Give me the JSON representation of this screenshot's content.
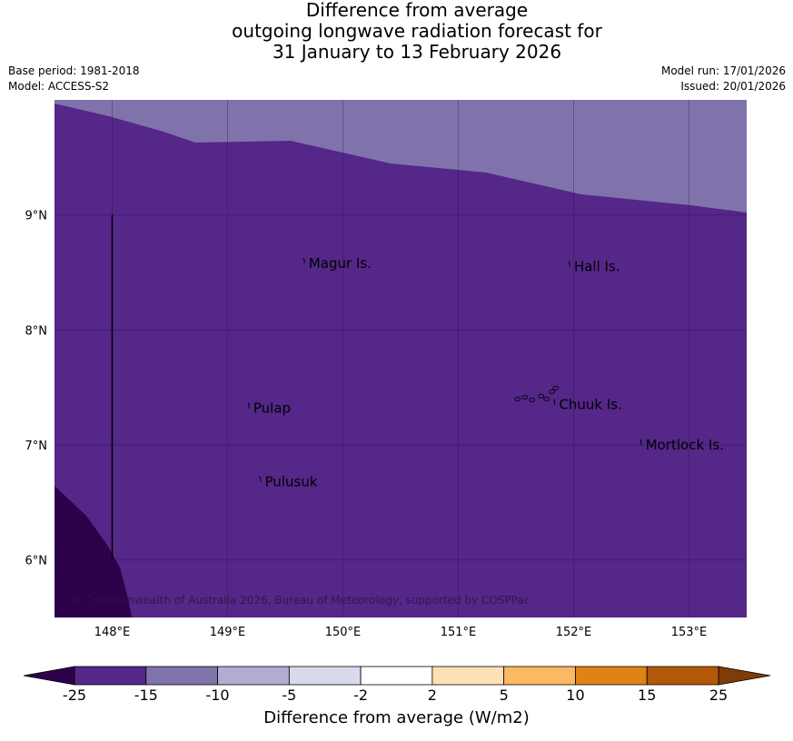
{
  "title": {
    "line1": "Difference from average",
    "line2": "outgoing longwave radiation forecast for",
    "line3": "31 January to 13 February 2026"
  },
  "meta": {
    "base_period": "Base period: 1981-2018",
    "model": "Model: ACCESS-S2",
    "model_run": "Model run: 17/01/2026",
    "issued": "Issued: 20/01/2026"
  },
  "map": {
    "lon_range": [
      147.5,
      153.5
    ],
    "lat_range": [
      5.5,
      10.0
    ],
    "lon_ticks": [
      {
        "value": 148,
        "label": "148°E"
      },
      {
        "value": 149,
        "label": "149°E"
      },
      {
        "value": 150,
        "label": "150°E"
      },
      {
        "value": 151,
        "label": "151°E"
      },
      {
        "value": 152,
        "label": "152°E"
      },
      {
        "value": 153,
        "label": "153°E"
      }
    ],
    "lat_ticks": [
      {
        "value": 9,
        "label": "9°N"
      },
      {
        "value": 8,
        "label": "8°N"
      },
      {
        "value": 7,
        "label": "7°N"
      },
      {
        "value": 6,
        "label": "6°N"
      }
    ],
    "places": [
      {
        "name": "Magur Is.",
        "lon": 149.68,
        "lat": 8.58
      },
      {
        "name": "Hall Is.",
        "lon": 151.98,
        "lat": 8.55
      },
      {
        "name": "Pulap",
        "lon": 149.2,
        "lat": 7.32
      },
      {
        "name": "Chuuk Is.",
        "lon": 151.85,
        "lat": 7.35
      },
      {
        "name": "Mortlock Is.",
        "lon": 152.6,
        "lat": 7.0
      },
      {
        "name": "Pulusuk",
        "lon": 149.3,
        "lat": 6.68
      }
    ],
    "copyright": "© Commonwealth of Australia 2026, Bureau of Meteorology, supported by COSPPac",
    "colors": {
      "main_fill": "#542788",
      "light_band": "#8073ac",
      "dark_corner": "#2d004b"
    }
  },
  "colorbar": {
    "title": "Difference from average (W/m2)",
    "labels": [
      "-25",
      "-15",
      "-10",
      "-5",
      "-2",
      "2",
      "5",
      "10",
      "15",
      "25"
    ],
    "colors": [
      "#542788",
      "#8073ac",
      "#b2abd2",
      "#d8daeb",
      "#ffffff",
      "#fee0b6",
      "#fdb863",
      "#e08214",
      "#b35806"
    ],
    "under_color": "#2d004b",
    "over_color": "#7f3b08"
  }
}
